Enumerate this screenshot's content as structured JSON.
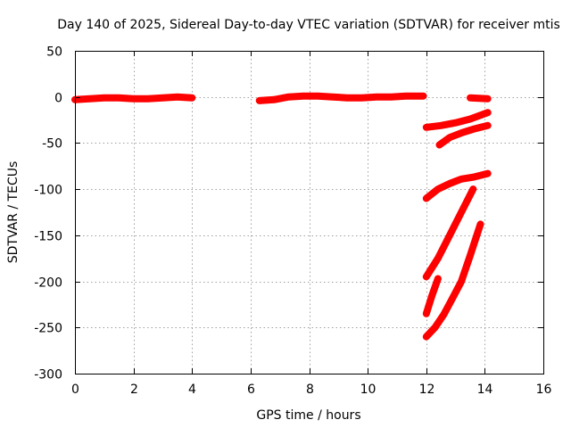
{
  "chart_data": {
    "type": "scatter",
    "title": "Day 140 of 2025, Sidereal Day-to-day VTEC variation (SDTVAR) for receiver mtis",
    "xlabel": "GPS time / hours",
    "ylabel": "SDTVAR / TECUs",
    "xlim": [
      0,
      16
    ],
    "ylim": [
      -300,
      50
    ],
    "xticks": [
      "0",
      "2",
      "4",
      "6",
      "8",
      "10",
      "12",
      "14",
      "16"
    ],
    "yticks": [
      "50",
      "0",
      "-50",
      "-100",
      "-150",
      "-200",
      "-250",
      "-300"
    ],
    "grid": true,
    "color": "#ff0000",
    "series": [
      {
        "x": [
          0.0,
          0.5,
          1.0,
          1.5,
          2.0,
          2.5,
          3.0,
          3.5,
          4.0
        ],
        "y": [
          -3,
          -2,
          -1,
          -1,
          -2,
          -2,
          -1,
          0,
          -1
        ]
      },
      {
        "x": [
          6.3,
          6.8,
          7.3,
          7.8,
          8.3,
          8.8,
          9.3,
          9.8,
          10.3,
          10.8,
          11.3,
          11.9
        ],
        "y": [
          -4,
          -3,
          0,
          1,
          1,
          0,
          -1,
          -1,
          0,
          0,
          1,
          1
        ]
      },
      {
        "x": [
          13.5,
          14.1
        ],
        "y": [
          -1,
          -2
        ]
      },
      {
        "x": [
          12.0,
          12.5,
          13.0,
          13.5,
          14.1
        ],
        "y": [
          -33,
          -31,
          -28,
          -24,
          -17
        ]
      },
      {
        "x": [
          12.45,
          12.8,
          13.2,
          13.6,
          14.1
        ],
        "y": [
          -52,
          -44,
          -39,
          -35,
          -31
        ]
      },
      {
        "x": [
          12.0,
          12.4,
          12.8,
          13.2,
          13.6,
          14.1
        ],
        "y": [
          -110,
          -100,
          -94,
          -89,
          -87,
          -83
        ]
      },
      {
        "x": [
          12.0,
          12.4,
          12.8,
          13.2,
          13.6
        ],
        "y": [
          -195,
          -175,
          -150,
          -125,
          -100
        ]
      },
      {
        "x": [
          12.0,
          12.2,
          12.4
        ],
        "y": [
          -235,
          -215,
          -197
        ]
      },
      {
        "x": [
          12.0,
          12.3,
          12.6,
          12.9,
          13.2,
          13.5,
          13.85
        ],
        "y": [
          -260,
          -250,
          -236,
          -218,
          -200,
          -172,
          -138
        ]
      }
    ]
  }
}
